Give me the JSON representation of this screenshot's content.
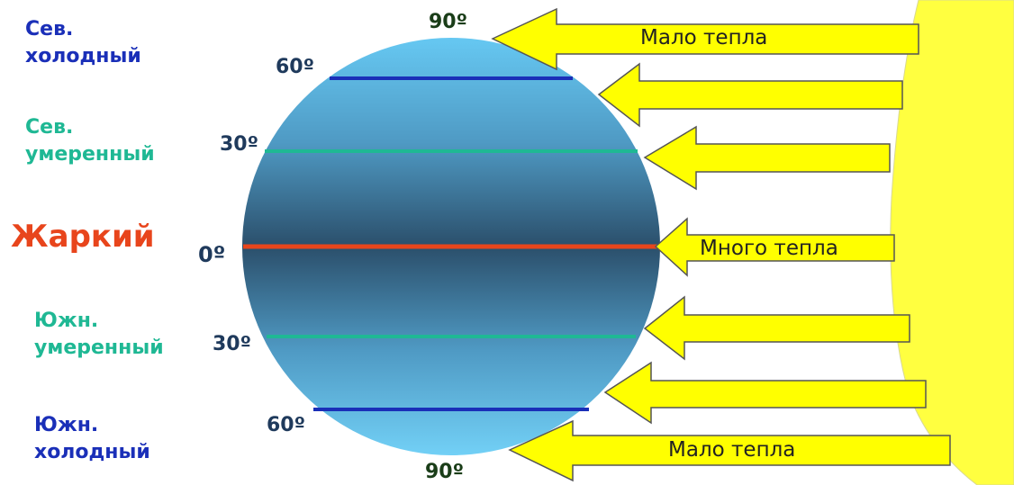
{
  "zones": {
    "north_cold": "Сев.\nхолодный",
    "north_temperate": "Сев.\nумеренный",
    "hot": "Жаркий",
    "south_temperate": "Южн.\nумеренный",
    "south_cold": "Южн.\nхолодный"
  },
  "latitudes": {
    "north_pole": "90º",
    "north_60": "60º",
    "north_30": "30º",
    "equator": "0º",
    "south_30": "30º",
    "south_60": "60º",
    "south_pole": "90º"
  },
  "arrows": {
    "top_label": "Мало тепла",
    "middle_label": "Много тепла",
    "bottom_label": "Мало тепла"
  },
  "colors": {
    "cold_zone": "#1a2fb8",
    "temperate_zone": "#1fb894",
    "hot_zone": "#e8451c",
    "arrow_fill": "#ffff00",
    "sun": "#ffff40"
  }
}
